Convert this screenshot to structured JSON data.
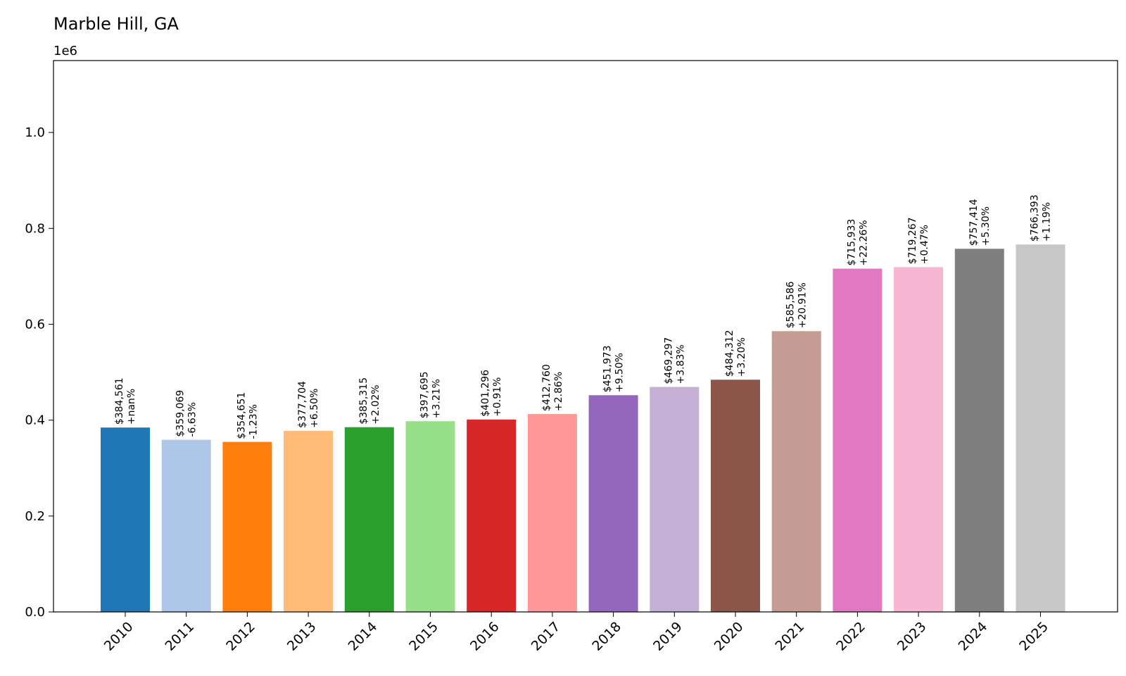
{
  "chart_data": {
    "type": "bar",
    "title": "Marble Hill, GA",
    "offset_label": "1e6",
    "xlabel": "",
    "ylabel": "",
    "ylim": [
      0,
      1.15
    ],
    "yticks": [
      0.0,
      0.2,
      0.4,
      0.6,
      0.8,
      1.0
    ],
    "ytick_labels": [
      "0.0",
      "0.2",
      "0.4",
      "0.6",
      "0.8",
      "1.0"
    ],
    "grid": false,
    "categories": [
      "2010",
      "2011",
      "2012",
      "2013",
      "2014",
      "2015",
      "2016",
      "2017",
      "2018",
      "2019",
      "2020",
      "2021",
      "2022",
      "2023",
      "2024",
      "2025"
    ],
    "values": [
      384561,
      359069,
      354651,
      377704,
      385315,
      397695,
      401296,
      412760,
      451973,
      469297,
      484312,
      585586,
      715933,
      719267,
      757414,
      766393
    ],
    "value_labels": [
      "$384,561",
      "$359,069",
      "$354,651",
      "$377,704",
      "$385,315",
      "$397,695",
      "$401,296",
      "$412,760",
      "$451,973",
      "$469,297",
      "$484,312",
      "$585,586",
      "$715,933",
      "$719,267",
      "$757,414",
      "$766,393"
    ],
    "change_labels": [
      "+nan%",
      "-6.63%",
      "-1.23%",
      "+6.50%",
      "+2.02%",
      "+3.21%",
      "+0.91%",
      "+2.86%",
      "+9.50%",
      "+3.83%",
      "+3.20%",
      "+20.91%",
      "+22.26%",
      "+0.47%",
      "+5.30%",
      "+1.19%"
    ],
    "colors": [
      "#1f77b4",
      "#aec7e8",
      "#ff7f0e",
      "#ffbb78",
      "#2ca02c",
      "#98df8a",
      "#d62728",
      "#ff9896",
      "#9467bd",
      "#c5b0d5",
      "#8c564b",
      "#c49c94",
      "#e377c2",
      "#f7b6d2",
      "#7f7f7f",
      "#c7c7c7"
    ]
  }
}
